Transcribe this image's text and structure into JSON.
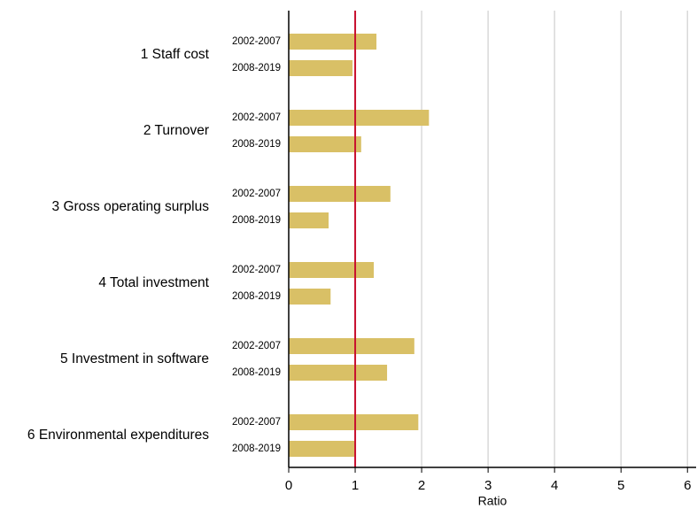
{
  "chart_data": {
    "type": "bar",
    "orientation": "horizontal",
    "x_label": "Ratio",
    "categories": [
      "1 Staff cost",
      "2 Turnover",
      "3 Gross operating surplus",
      "4 Total investment",
      "5 Investment in software",
      "6 Environmental expenditures"
    ],
    "series": [
      {
        "name": "2002-2007",
        "color": "#d9c066",
        "values": [
          1.32,
          2.11,
          1.53,
          1.28,
          1.89,
          1.95
        ]
      },
      {
        "name": "2008-2019",
        "color": "#d9c066",
        "values": [
          0.96,
          1.09,
          0.6,
          0.63,
          1.48,
          0.99
        ]
      }
    ],
    "xlim": [
      0,
      6.13
    ],
    "xticks": [
      0,
      1,
      2,
      3,
      4,
      5,
      6
    ],
    "grid": true,
    "reference_line": {
      "value": 1,
      "color": "#c8102e"
    }
  }
}
